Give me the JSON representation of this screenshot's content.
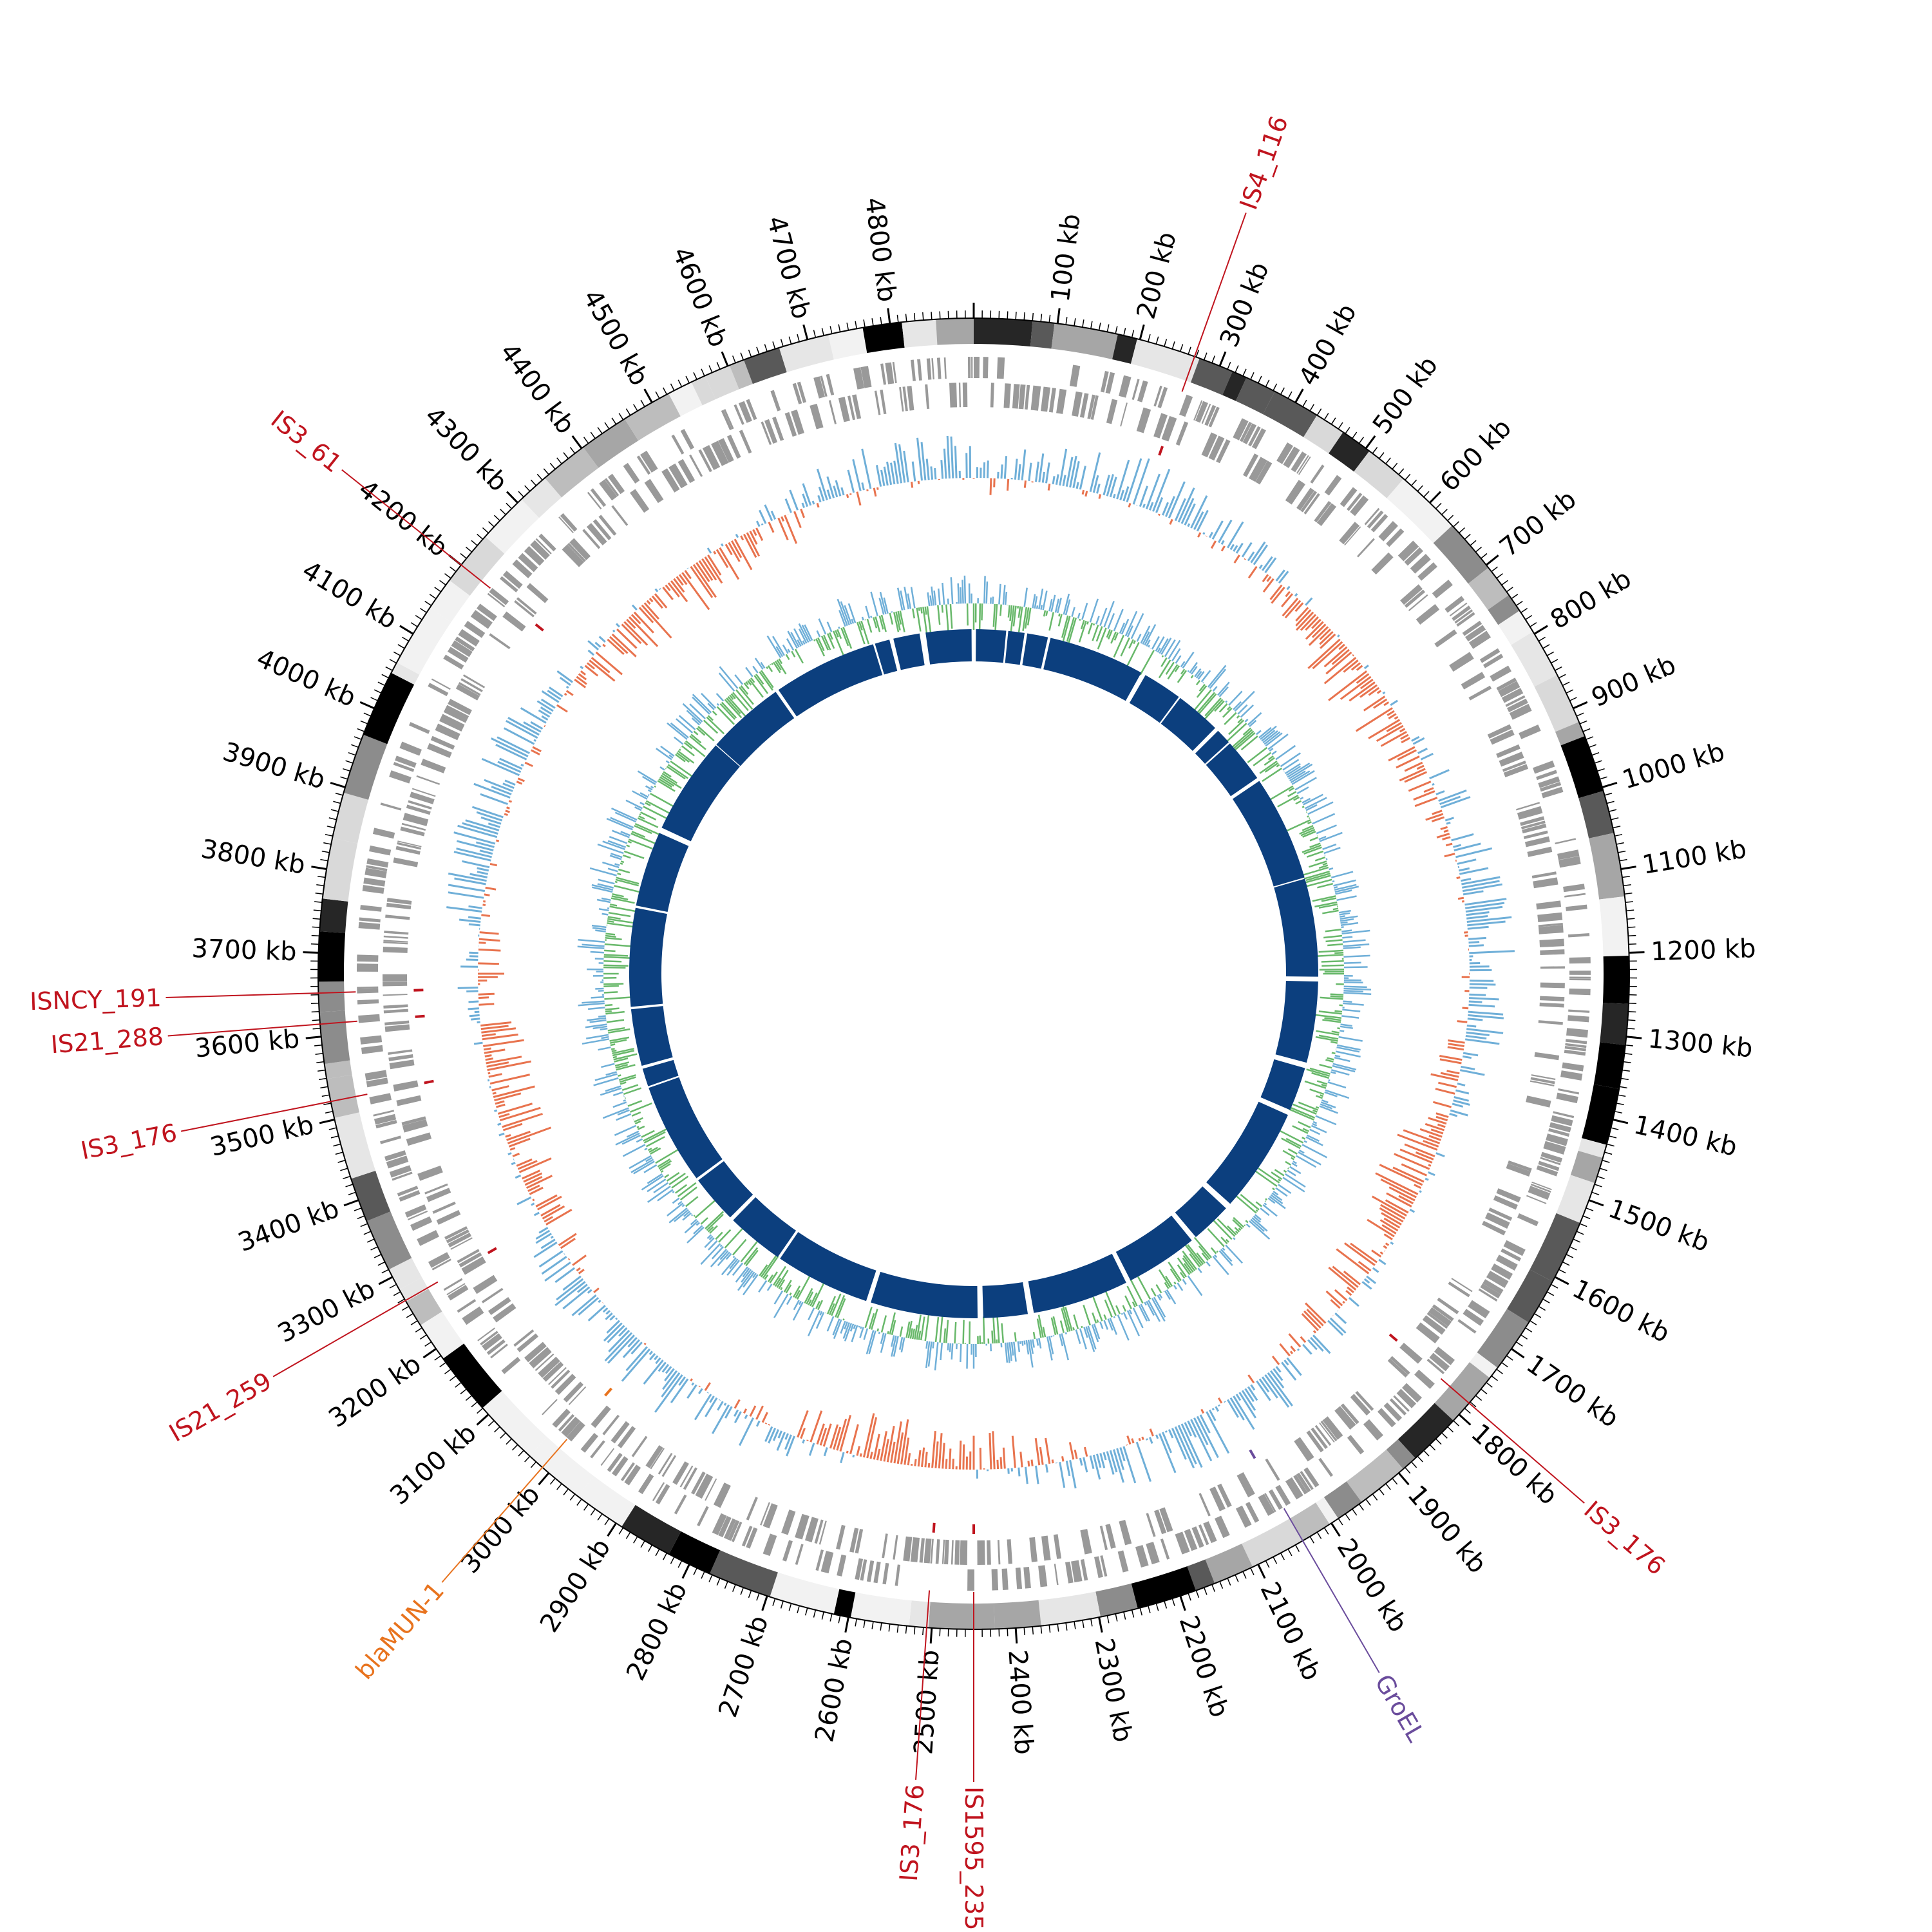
{
  "genome": {
    "length_kb": 4900,
    "tick_unit": "kb",
    "tick_labels": [
      "100 kb",
      "200 kb",
      "300 kb",
      "400 kb",
      "500 kb",
      "600 kb",
      "700 kb",
      "800 kb",
      "900 kb",
      "1000 kb",
      "1100 kb",
      "1200 kb",
      "1300 kb",
      "1400 kb",
      "1500 kb",
      "1600 kb",
      "1700 kb",
      "1800 kb",
      "1900 kb",
      "2000 kb",
      "2100 kb",
      "2200 kb",
      "2300 kb",
      "2400 kb",
      "2500 kb",
      "2600 kb",
      "2700 kb",
      "2800 kb",
      "2900 kb",
      "3000 kb",
      "3100 kb",
      "3200 kb",
      "3300 kb",
      "3400 kb",
      "3500 kb",
      "3600 kb",
      "3700 kb",
      "3800 kb",
      "3900 kb",
      "4000 kb",
      "4100 kb",
      "4200 kb",
      "4300 kb",
      "4400 kb",
      "4500 kb",
      "4600 kb",
      "4700 kb",
      "4800 kb"
    ],
    "tick_positions_kb": [
      100,
      200,
      300,
      400,
      500,
      600,
      700,
      800,
      900,
      1000,
      1100,
      1200,
      1300,
      1400,
      1500,
      1600,
      1700,
      1800,
      1900,
      2000,
      2100,
      2200,
      2300,
      2400,
      2500,
      2600,
      2700,
      2800,
      2900,
      3000,
      3100,
      3200,
      3300,
      3400,
      3500,
      3600,
      3700,
      3800,
      3900,
      4000,
      4100,
      4200,
      4300,
      4400,
      4500,
      4600,
      4700,
      4800
    ]
  },
  "colors": {
    "is_element": "#c0141e",
    "resistance_gene": "#e8731e",
    "groel": "#6a4c9c",
    "gc_skew_positive": "#e8734e",
    "gc_skew_negative": "#6fafd8",
    "gc_content_positive": "#68b86a",
    "gc_content_negative": "#6fafd8",
    "inner_ring": "#0c3f7e",
    "gene_ring": "#999999"
  },
  "features": [
    {
      "label": "IS4_116",
      "position_kb": 268,
      "type": "is_element"
    },
    {
      "label": "IS3_176",
      "position_kb": 1782,
      "type": "is_element"
    },
    {
      "label": "GroEL",
      "position_kb": 2040,
      "type": "groel"
    },
    {
      "label": "IS1595_235",
      "position_kb": 2450,
      "type": "is_element"
    },
    {
      "label": "IS3_176",
      "position_kb": 2506,
      "type": "is_element"
    },
    {
      "label": "blaMUN-1",
      "position_kb": 3010,
      "type": "resistance_gene"
    },
    {
      "label": "IS21_259",
      "position_kb": 3268,
      "type": "is_element"
    },
    {
      "label": "IS3_176",
      "position_kb": 3522,
      "type": "is_element"
    },
    {
      "label": "IS21_288",
      "position_kb": 3615,
      "type": "is_element"
    },
    {
      "label": "ISNCY_191",
      "position_kb": 3652,
      "type": "is_element"
    },
    {
      "label": "IS3_61",
      "position_kb": 4200,
      "type": "is_element"
    }
  ],
  "chart_data": {
    "type": "circular-genome",
    "tracks": [
      "ideogram",
      "gene-ring",
      "gc-skew",
      "gc-content",
      "inner-blocks"
    ]
  }
}
